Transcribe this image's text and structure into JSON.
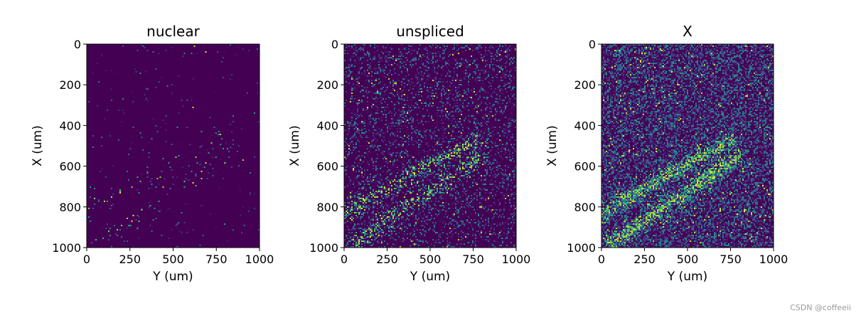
{
  "figure": {
    "watermark": "CSDN @coffeeii"
  },
  "chart_data": [
    {
      "type": "heatmap",
      "title": "nuclear",
      "xlabel": "Y (um)",
      "ylabel": "X (um)",
      "xlim": [
        0,
        1000
      ],
      "ylim": [
        1000,
        0
      ],
      "xticks": [
        0,
        250,
        500,
        750,
        1000
      ],
      "yticks": [
        0,
        200,
        400,
        600,
        800,
        1000
      ],
      "colormap": "viridis",
      "density": {
        "background": 0.02,
        "band": 0.06
      },
      "note": ""
    },
    {
      "type": "heatmap",
      "title": "unspliced",
      "xlabel": "Y (um)",
      "ylabel": "X (um)",
      "xlim": [
        0,
        1000
      ],
      "ylim": [
        1000,
        0
      ],
      "xticks": [
        0,
        250,
        500,
        750,
        1000
      ],
      "yticks": [
        0,
        200,
        400,
        600,
        800,
        1000
      ],
      "colormap": "viridis",
      "density": {
        "background": 0.3,
        "band": 0.55
      },
      "note": ""
    },
    {
      "type": "heatmap",
      "title": "X",
      "xlabel": "Y (um)",
      "ylabel": "X (um)",
      "xlim": [
        0,
        1000
      ],
      "ylim": [
        1000,
        0
      ],
      "xticks": [
        0,
        250,
        500,
        750,
        1000
      ],
      "yticks": [
        0,
        200,
        400,
        600,
        800,
        1000
      ],
      "colormap": "viridis",
      "density": {
        "background": 0.75,
        "band": 0.95
      },
      "note": ""
    }
  ]
}
